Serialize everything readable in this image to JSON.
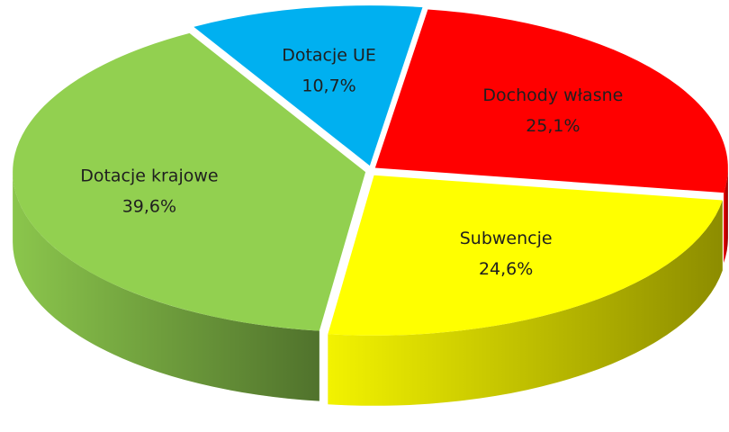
{
  "chart_data": {
    "type": "pie",
    "categories": [
      "Dochody własne",
      "Subwencje",
      "Dotacje krajowe",
      "Dotacje UE"
    ],
    "values": [
      25.1,
      24.6,
      39.6,
      10.7
    ],
    "value_labels": [
      "25,1%",
      "24,6%",
      "39,6%",
      "10,7%"
    ],
    "colors": [
      "#ff0000",
      "#ffff00",
      "#92d050",
      "#00b0f0"
    ]
  }
}
